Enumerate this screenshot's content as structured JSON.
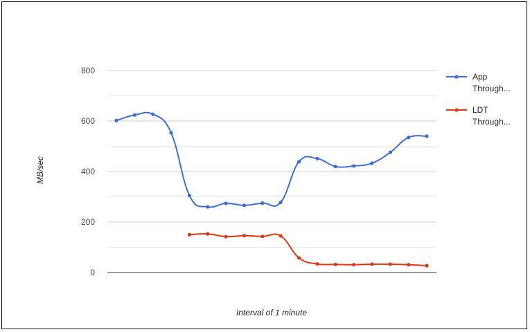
{
  "chart_data": {
    "type": "line",
    "title": "",
    "xlabel": "Interval of 1 minute",
    "ylabel": "MB/sec",
    "ylim": [
      0,
      800
    ],
    "yticks": [
      0,
      200,
      400,
      600,
      800
    ],
    "grid": true,
    "legend_position": "right",
    "x": [
      1,
      2,
      3,
      4,
      5,
      6,
      7,
      8,
      9,
      10,
      11,
      12,
      13,
      14,
      15,
      16,
      17,
      18
    ],
    "series": [
      {
        "name": "App Through...",
        "color": "#3c6fd1",
        "values": [
          602,
          624,
          627,
          553,
          305,
          260,
          274,
          266,
          275,
          278,
          439,
          451,
          420,
          422,
          433,
          476,
          535,
          540
        ]
      },
      {
        "name": "LDT Through...",
        "color": "#dc3912",
        "values": [
          null,
          null,
          null,
          null,
          150,
          153,
          142,
          146,
          143,
          145,
          58,
          34,
          32,
          31,
          33,
          33,
          31,
          27
        ]
      }
    ]
  }
}
